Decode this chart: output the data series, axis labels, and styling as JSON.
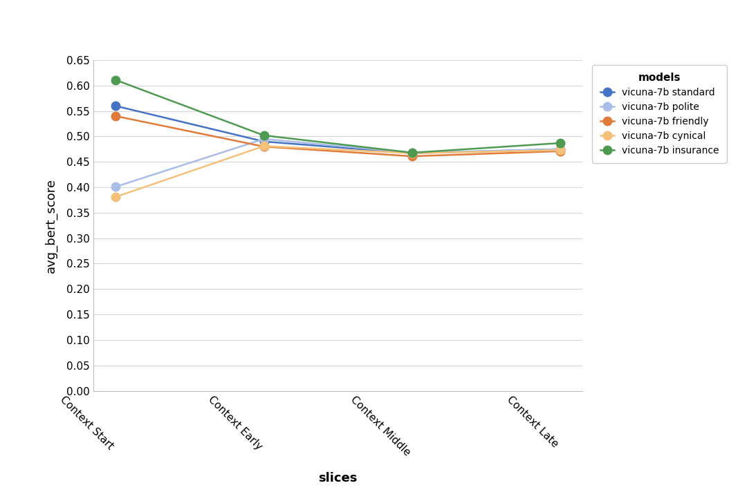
{
  "x_labels": [
    "Context Start",
    "Context Early",
    "Context Middle",
    "Context Late"
  ],
  "series": [
    {
      "name": "vicuna-7b standard",
      "color": "#4472C4",
      "values": [
        0.56,
        0.49,
        0.467,
        0.475
      ]
    },
    {
      "name": "vicuna-7b polite",
      "color": "#A9BDE6",
      "values": [
        0.401,
        0.495,
        0.468,
        0.475
      ]
    },
    {
      "name": "vicuna-7b friendly",
      "color": "#E07B39",
      "values": [
        0.54,
        0.48,
        0.461,
        0.471
      ]
    },
    {
      "name": "vicuna-7b cynical",
      "color": "#F5C07A",
      "values": [
        0.381,
        0.481,
        0.467,
        0.473
      ]
    },
    {
      "name": "vicuna-7b insurance",
      "color": "#4E9A51",
      "values": [
        0.611,
        0.502,
        0.468,
        0.487
      ]
    }
  ],
  "xlabel": "slices",
  "ylabel": "avg_bert_score",
  "legend_title": "models",
  "ylim": [
    0.0,
    0.65
  ],
  "yticks": [
    0.0,
    0.05,
    0.1,
    0.15,
    0.2,
    0.25,
    0.3,
    0.35,
    0.4,
    0.45,
    0.5,
    0.55,
    0.6,
    0.65
  ],
  "background_color": "#ffffff",
  "grid_color": "#d5d5d5",
  "marker_size": 9,
  "line_width": 1.8,
  "tick_rotation": -45,
  "figsize": [
    10.8,
    7.25
  ],
  "dpi": 100
}
